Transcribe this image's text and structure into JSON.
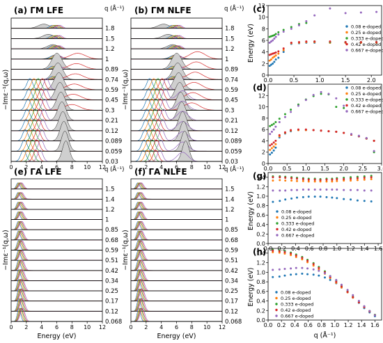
{
  "chart_data": [
    {
      "id": "a",
      "type": "area",
      "title": "(a)  ΓM  LFE",
      "xlabel": "Energy (eV)",
      "ylabel": "−Imε⁻¹(q,ω)",
      "q_header": "q (Å⁻¹)",
      "q_values": [
        "1.8",
        "1.5",
        "1.2",
        "1",
        "0.89",
        "0.74",
        "0.59",
        "0.45",
        "0.3",
        "0.21",
        "0.12",
        "0.089",
        "0.059",
        "0.03"
      ],
      "xticks": [
        "0",
        "2",
        "4",
        "6",
        "8",
        "10",
        "12"
      ],
      "xlim": [
        0,
        12
      ]
    },
    {
      "id": "b",
      "type": "area",
      "title": "(b)  ΓM  NLFE",
      "xlabel": "Energy (eV)",
      "ylabel": "−Imε⁻¹(q,ω)",
      "q_header": "q (Å⁻¹)",
      "q_values": [
        "1.8",
        "1.5",
        "1.2",
        "1",
        "0.89",
        "0.74",
        "0.59",
        "0.45",
        "0.3",
        "0.21",
        "0.12",
        "0.089",
        "0.059",
        "0.03"
      ],
      "xticks": [
        "0",
        "2",
        "4",
        "6",
        "8",
        "10",
        "12"
      ],
      "xlim": [
        0,
        12
      ]
    },
    {
      "id": "e",
      "type": "area",
      "title": "(e)  ΓA  LFE",
      "xlabel": "Energy (eV)",
      "ylabel": "−Imε⁻¹(q,ω)",
      "q_header": "q (Å⁻¹)",
      "q_values": [
        "1.5",
        "1.4",
        "1.2",
        "1",
        "0.85",
        "0.68",
        "0.59",
        "0.51",
        "0.42",
        "0.34",
        "0.25",
        "0.17",
        "0.12",
        "0.068"
      ],
      "xticks": [
        "0",
        "2",
        "4",
        "6",
        "8",
        "10",
        "12"
      ],
      "xlim": [
        0,
        12
      ]
    },
    {
      "id": "f",
      "type": "area",
      "title": "(f)  ΓA  NLFE",
      "xlabel": "Energy (eV)",
      "ylabel": "−Imε⁻¹(q,ω)",
      "q_header": "q (Å⁻¹)",
      "q_values": [
        "1.5",
        "1.4",
        "1.2",
        "1",
        "0.85",
        "0.68",
        "0.59",
        "0.51",
        "0.42",
        "0.34",
        "0.25",
        "0.17",
        "0.12",
        "0.068"
      ],
      "xticks": [
        "0",
        "2",
        "4",
        "6",
        "8",
        "10",
        "12"
      ],
      "xlim": [
        0,
        12
      ]
    },
    {
      "id": "c",
      "type": "scatter",
      "title": "(c)",
      "ylabel": "Energy (eV)",
      "xlim": [
        0,
        2.2
      ],
      "ylim": [
        0,
        12
      ],
      "xticks": [
        "0.0",
        "0.5",
        "1.0",
        "1.5",
        "2.0"
      ],
      "yticks": [
        "0",
        "2",
        "4",
        "6",
        "8",
        "10",
        "12"
      ],
      "legend": [
        "0.08 e-doped",
        "0.25 e-doped",
        "0.333 e-doped",
        "0.42 e-doped",
        "0.667 e-doped"
      ],
      "colors": [
        "#1f77b4",
        "#ff7f0e",
        "#2ca02c",
        "#d62728",
        "#9467bd"
      ],
      "series": [
        {
          "name": "0.08 e-doped",
          "x": [
            0.03,
            0.06,
            0.09,
            0.12,
            0.15,
            0.2,
            0.3,
            0.45,
            0.6,
            0.74,
            0.9,
            1.2,
            1.5,
            1.8,
            2.1
          ],
          "y": [
            1.6,
            1.8,
            2.0,
            2.3,
            2.7,
            3.0,
            4.0,
            5.4,
            5.5,
            5.6,
            5.6,
            5.6,
            5.6,
            5.6,
            5.6
          ]
        },
        {
          "name": "0.25 e-doped",
          "x": [
            0.03,
            0.06,
            0.09,
            0.12,
            0.15,
            0.2,
            0.3,
            0.45,
            0.6,
            0.74,
            0.9,
            1.2,
            1.5,
            1.8,
            2.1
          ],
          "y": [
            2.5,
            2.7,
            3.0,
            3.2,
            3.4,
            3.7,
            4.3,
            5.5,
            5.6,
            5.7,
            5.7,
            5.6,
            5.6,
            5.6,
            5.6
          ]
        },
        {
          "name": "0.333 e-doped",
          "x": [
            0.03,
            0.06,
            0.09,
            0.12,
            0.15,
            0.2,
            0.3,
            0.45,
            0.6,
            0.74,
            0.9,
            1.2,
            1.5,
            1.8,
            2.1
          ],
          "y": [
            6.6,
            6.7,
            6.8,
            6.9,
            7.1,
            7.4,
            7.8,
            8.3,
            8.8,
            9.0,
            5.8,
            5.7,
            5.7,
            5.7,
            5.7
          ]
        },
        {
          "name": "0.42 e-doped",
          "x": [
            0.03,
            0.06,
            0.09,
            0.12,
            0.15,
            0.2,
            0.3,
            0.45,
            0.6,
            0.74,
            0.9,
            1.2,
            1.5,
            1.8,
            2.1
          ],
          "y": [
            3.5,
            3.6,
            3.7,
            3.8,
            3.9,
            4.1,
            4.6,
            5.6,
            5.7,
            5.8,
            5.8,
            5.8,
            5.7,
            5.7,
            5.7
          ]
        },
        {
          "name": "0.667 e-doped",
          "x": [
            0.03,
            0.06,
            0.09,
            0.12,
            0.15,
            0.2,
            0.3,
            0.45,
            0.6,
            0.74,
            0.9,
            1.2,
            1.5,
            1.8,
            2.1
          ],
          "y": [
            5.6,
            5.8,
            6.0,
            6.3,
            6.6,
            7.0,
            7.5,
            8.0,
            8.6,
            9.3,
            10.3,
            11.5,
            10.7,
            10.8,
            10.9
          ]
        }
      ]
    },
    {
      "id": "d",
      "type": "scatter",
      "title": "(d)",
      "xlim": [
        0,
        3.0
      ],
      "ylim": [
        0,
        14
      ],
      "xticks": [
        "0.0",
        "0.5",
        "1.0",
        "1.5",
        "2.0",
        "2.5",
        "3.0"
      ],
      "yticks": [
        "0",
        "2",
        "4",
        "6",
        "8",
        "10",
        "12"
      ],
      "legend": [
        "0.08 e-doped",
        "0.25 e-doped",
        "0.333 e-doped",
        "0.42 e-doped",
        "0.667 e-doped"
      ],
      "colors": [
        "#1f77b4",
        "#ff7f0e",
        "#2ca02c",
        "#d62728",
        "#9467bd"
      ],
      "series": [
        {
          "name": "0.08 e-doped",
          "x": [
            0.05,
            0.1,
            0.15,
            0.2,
            0.3,
            0.45,
            0.6,
            0.8,
            1.0,
            1.2,
            1.4,
            1.6,
            1.8,
            2.0,
            2.2,
            2.4,
            2.6,
            2.8
          ],
          "y": [
            1.6,
            1.9,
            2.3,
            2.8,
            4.6,
            5.3,
            5.7,
            5.9,
            5.9,
            5.9,
            5.8,
            5.7,
            5.6,
            5.4,
            5.1,
            4.8,
            4.4,
            4.0
          ]
        },
        {
          "name": "0.25 e-doped",
          "x": [
            0.05,
            0.1,
            0.15,
            0.2,
            0.3,
            0.45,
            0.6,
            0.8,
            1.0,
            1.2,
            1.4,
            1.6,
            1.8,
            2.0,
            2.2,
            2.4,
            2.6,
            2.8
          ],
          "y": [
            2.4,
            2.7,
            3.0,
            3.4,
            4.8,
            5.4,
            5.8,
            5.9,
            5.9,
            5.9,
            5.8,
            5.7,
            5.6,
            5.4,
            5.1,
            4.8,
            4.4,
            4.0
          ]
        },
        {
          "name": "0.333 e-doped",
          "x": [
            0.05,
            0.1,
            0.15,
            0.2,
            0.3,
            0.45,
            0.6,
            0.8,
            1.0,
            1.2,
            1.4,
            1.6,
            1.8,
            2.0,
            2.2,
            2.4,
            2.6,
            2.8
          ],
          "y": [
            6.6,
            6.8,
            7.0,
            7.3,
            7.9,
            8.7,
            9.5,
            10.4,
            11.3,
            11.9,
            12.3,
            12.2,
            10.0,
            9.8,
            5.1,
            4.8,
            4.4,
            2.0
          ]
        },
        {
          "name": "0.42 e-doped",
          "x": [
            0.05,
            0.1,
            0.15,
            0.2,
            0.3,
            0.45,
            0.6,
            0.8,
            1.0,
            1.2,
            1.4,
            1.6,
            1.8,
            2.0,
            2.2,
            2.4,
            2.6,
            2.8
          ],
          "y": [
            3.2,
            3.4,
            3.7,
            4.0,
            5.0,
            5.5,
            5.9,
            6.0,
            6.0,
            5.9,
            5.8,
            5.7,
            5.6,
            5.4,
            5.1,
            4.8,
            4.4,
            4.0
          ]
        },
        {
          "name": "0.667 e-doped",
          "x": [
            0.05,
            0.1,
            0.15,
            0.2,
            0.3,
            0.45,
            0.6,
            0.8,
            1.0,
            1.2,
            1.4,
            1.6,
            1.8,
            2.0,
            2.2,
            2.4,
            2.6,
            2.8
          ],
          "y": [
            5.2,
            5.6,
            6.0,
            6.5,
            7.3,
            8.2,
            9.1,
            10.2,
            11.2,
            12.1,
            12.6,
            12.3,
            11.5,
            10.2,
            5.2,
            4.9,
            4.5,
            2.2
          ]
        }
      ]
    },
    {
      "id": "g",
      "type": "scatter",
      "title": "(g)",
      "ylabel": "Energy (eV)",
      "xlim": [
        0,
        1.65
      ],
      "ylim": [
        0,
        1.5
      ],
      "xticks": [
        "0.0",
        "0.2",
        "0.4",
        "0.6",
        "0.8",
        "1.0",
        "1.2",
        "1.4",
        "1.6"
      ],
      "yticks": [
        "0.0",
        "0.2",
        "0.4",
        "0.6",
        "0.8",
        "1.0",
        "1.2",
        "1.4"
      ],
      "legend": [
        "0.08 e-doped",
        "0.25 e-doped",
        "0.333 e-doped",
        "0.42 e-doped",
        "0.667 e-doped"
      ],
      "colors": [
        "#1f77b4",
        "#ff7f0e",
        "#2ca02c",
        "#d62728",
        "#9467bd"
      ],
      "series": [
        {
          "name": "0.08 e-doped",
          "x": [
            0.07,
            0.17,
            0.25,
            0.34,
            0.42,
            0.51,
            0.59,
            0.68,
            0.76,
            0.85,
            0.93,
            1.0,
            1.1,
            1.2,
            1.3,
            1.4,
            1.5
          ],
          "y": [
            0.88,
            0.9,
            0.93,
            0.95,
            0.97,
            0.98,
            0.99,
            0.99,
            0.99,
            0.98,
            0.97,
            0.96,
            0.94,
            0.93,
            0.91,
            0.9,
            0.89
          ]
        },
        {
          "name": "0.25 e-doped",
          "x": [
            0.07,
            0.17,
            0.25,
            0.34,
            0.42,
            0.51,
            0.59,
            0.68,
            0.76,
            0.85,
            0.93,
            1.0,
            1.1,
            1.2,
            1.3,
            1.4,
            1.5
          ],
          "y": [
            1.33,
            1.34,
            1.33,
            1.33,
            1.32,
            1.32,
            1.31,
            1.31,
            1.31,
            1.31,
            1.31,
            1.32,
            1.33,
            1.33,
            1.34,
            1.35,
            1.36
          ]
        },
        {
          "name": "0.333 e-doped",
          "x": [
            0.07,
            0.17,
            0.25,
            0.34,
            0.42,
            0.51,
            0.59,
            0.68,
            0.76,
            0.85,
            0.93,
            1.0,
            1.1,
            1.2,
            1.3,
            1.4,
            1.5
          ],
          "y": [
            1.42,
            1.42,
            1.41,
            1.4,
            1.39,
            1.38,
            1.37,
            1.37,
            1.36,
            1.37,
            1.37,
            1.38,
            1.39,
            1.4,
            1.41,
            1.42,
            1.43
          ]
        },
        {
          "name": "0.42 e-doped",
          "x": [
            0.07,
            0.17,
            0.25,
            0.34,
            0.42,
            0.51,
            0.59,
            0.68,
            0.76,
            0.85,
            0.93,
            1.0,
            1.1,
            1.2,
            1.3,
            1.4,
            1.5
          ],
          "y": [
            1.4,
            1.4,
            1.39,
            1.38,
            1.37,
            1.36,
            1.35,
            1.35,
            1.34,
            1.35,
            1.35,
            1.36,
            1.36,
            1.37,
            1.38,
            1.39,
            1.4
          ]
        },
        {
          "name": "0.667 e-doped",
          "x": [
            0.07,
            0.17,
            0.25,
            0.34,
            0.42,
            0.51,
            0.59,
            0.68,
            0.76,
            0.85,
            0.93,
            1.0,
            1.1,
            1.2,
            1.3,
            1.4,
            1.5
          ],
          "y": [
            1.12,
            1.12,
            1.12,
            1.13,
            1.13,
            1.14,
            1.14,
            1.14,
            1.14,
            1.14,
            1.14,
            1.14,
            1.13,
            1.13,
            1.13,
            1.12,
            1.12
          ]
        }
      ]
    },
    {
      "id": "h",
      "type": "scatter",
      "title": "(h)",
      "ylabel": "Energy (eV)",
      "xlabel": "q (Å⁻¹)",
      "xlim": [
        0,
        1.7
      ],
      "ylim": [
        0,
        1.5
      ],
      "xticks": [
        "0.0",
        "0.2",
        "0.4",
        "0.6",
        "0.8",
        "1.0",
        "1.2",
        "1.4",
        "1.6"
      ],
      "yticks": [
        "0.0",
        "0.2",
        "0.4",
        "0.6",
        "0.8",
        "1.0",
        "1.2",
        "1.4"
      ],
      "legend": [
        "0.08 e-doped",
        "0.25 e-doped",
        "0.333 e-doped",
        "0.42 e-doped",
        "0.667 e-doped"
      ],
      "colors": [
        "#1f77b4",
        "#ff7f0e",
        "#2ca02c",
        "#d62728",
        "#9467bd"
      ],
      "series": [
        {
          "name": "0.08 e-doped",
          "x": [
            0.07,
            0.17,
            0.25,
            0.34,
            0.42,
            0.51,
            0.59,
            0.68,
            0.76,
            0.85,
            0.93,
            1.02,
            1.1,
            1.19,
            1.27,
            1.36,
            1.44,
            1.52,
            1.6
          ],
          "y": [
            0.9,
            0.91,
            0.93,
            0.95,
            0.96,
            0.97,
            0.96,
            0.95,
            0.93,
            0.89,
            0.84,
            0.77,
            0.68,
            0.58,
            0.47,
            0.36,
            0.25,
            0.16,
            0.08
          ]
        },
        {
          "name": "0.25 e-doped",
          "x": [
            0.07,
            0.17,
            0.25,
            0.34,
            0.42,
            0.51,
            0.59,
            0.68,
            0.76,
            0.85,
            0.93,
            1.02,
            1.1,
            1.19,
            1.27,
            1.36,
            1.44,
            1.52,
            1.6
          ],
          "y": [
            1.42,
            1.41,
            1.39,
            1.36,
            1.32,
            1.27,
            1.21,
            1.14,
            1.06,
            0.97,
            0.88,
            0.78,
            0.68,
            0.58,
            0.47,
            0.37,
            0.27,
            0.18,
            0.1
          ]
        },
        {
          "name": "0.333 e-doped",
          "x": [
            0.07,
            0.17,
            0.25,
            0.34,
            0.42,
            0.51,
            0.59,
            0.68,
            0.76,
            0.85,
            0.93,
            1.02,
            1.1,
            1.19,
            1.27,
            1.36,
            1.44,
            1.52,
            1.6
          ],
          "y": [
            1.47,
            1.46,
            1.44,
            1.41,
            1.37,
            1.32,
            1.26,
            1.19,
            1.11,
            1.02,
            0.92,
            0.82,
            0.71,
            0.6,
            0.49,
            0.38,
            0.28,
            0.19,
            0.11
          ]
        },
        {
          "name": "0.42 e-doped",
          "x": [
            0.07,
            0.17,
            0.25,
            0.34,
            0.42,
            0.51,
            0.59,
            0.68,
            0.76,
            0.85,
            0.93,
            1.02,
            1.1,
            1.19,
            1.27,
            1.36,
            1.44,
            1.52,
            1.6
          ],
          "y": [
            1.45,
            1.44,
            1.42,
            1.39,
            1.35,
            1.3,
            1.24,
            1.17,
            1.09,
            1.0,
            0.9,
            0.8,
            0.7,
            0.59,
            0.48,
            0.37,
            0.27,
            0.18,
            0.1
          ]
        },
        {
          "name": "0.667 e-doped",
          "x": [
            0.07,
            0.17,
            0.25,
            0.34,
            0.42,
            0.51,
            0.59,
            0.68,
            0.76,
            0.85,
            0.93,
            1.02,
            1.1,
            1.19,
            1.27,
            1.36,
            1.44,
            1.52,
            1.6
          ],
          "y": [
            1.05,
            1.06,
            1.07,
            1.08,
            1.09,
            1.09,
            1.08,
            1.06,
            1.03,
            0.98,
            0.92,
            0.84,
            0.74,
            0.63,
            0.52,
            0.4,
            0.29,
            0.19,
            0.1
          ]
        }
      ]
    }
  ]
}
